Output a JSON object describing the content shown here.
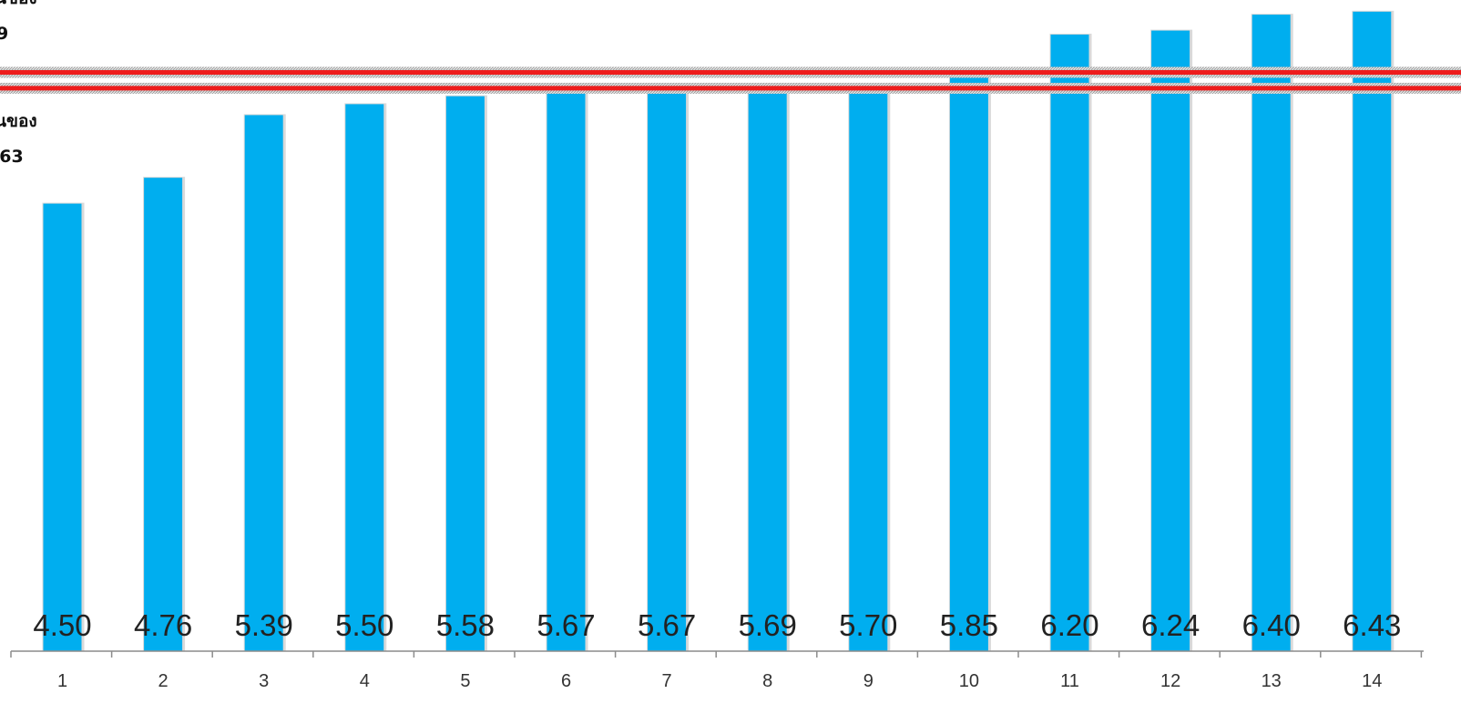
{
  "chart_data": {
    "type": "bar",
    "categories": [
      "1",
      "2",
      "3",
      "4",
      "5",
      "6",
      "7",
      "8",
      "9",
      "10",
      "11",
      "12",
      "13",
      "14"
    ],
    "values": [
      4.5,
      4.76,
      5.39,
      5.5,
      5.58,
      5.67,
      5.67,
      5.69,
      5.7,
      5.85,
      6.2,
      6.24,
      6.4,
      6.43
    ],
    "value_labels": [
      "4.50",
      "4.76",
      "5.39",
      "5.50",
      "5.58",
      "5.67",
      "5.67",
      "5.69",
      "5.70",
      "5.85",
      "6.20",
      "6.24",
      "6.40",
      "6.43"
    ],
    "ylim": [
      0,
      6.5
    ],
    "grid": false,
    "colors": {
      "bar": "#00aeef",
      "reference_line": "#ee1c1c"
    },
    "reference_lines": [
      {
        "value": 5.82
      },
      {
        "value": 5.66
      }
    ],
    "side_labels": [
      {
        "line1": "นของ",
        "line2": "9"
      },
      {
        "line1": "นของ",
        "line2": ".63"
      }
    ]
  }
}
